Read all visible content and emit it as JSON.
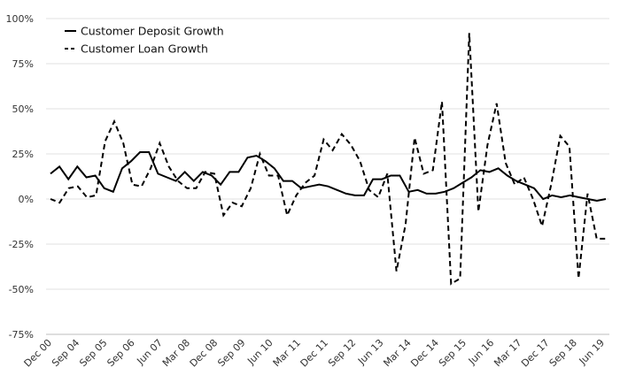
{
  "chart_data": {
    "type": "line",
    "title": "",
    "xlabel": "",
    "ylabel": "",
    "ylim": [
      -75,
      100
    ],
    "yticks": [
      100,
      75,
      50,
      25,
      0,
      -25,
      -50,
      -75
    ],
    "ytick_labels": [
      "100%",
      "75%",
      "50%",
      "25%",
      "0%",
      "-25%",
      "-50%",
      "-75%"
    ],
    "xtick_labels": [
      "Dec 00",
      "Sep 04",
      "Sep 05",
      "Sep 06",
      "Jun 07",
      "Mar 08",
      "Dec 08",
      "Sep 09",
      "Jun 10",
      "Mar 11",
      "Dec 11",
      "Sep 12",
      "Jun 13",
      "Mar 14",
      "Dec 14",
      "Sep 15",
      "Jun 16",
      "Mar 17",
      "Dec 17",
      "Sep 18",
      "Jun 19"
    ],
    "grid": true,
    "legend": "top-left",
    "series": [
      {
        "name": "Customer Deposit Growth",
        "style": "solid",
        "color": "#000000",
        "values": [
          14,
          18,
          11,
          18,
          12,
          13,
          6,
          4,
          17,
          21,
          26,
          26,
          14,
          12,
          10,
          15,
          10,
          15,
          13,
          8,
          15,
          15,
          23,
          24,
          21,
          17,
          10,
          10,
          6,
          7,
          8,
          7,
          5,
          3,
          2,
          2,
          11,
          11,
          13,
          13,
          4,
          5,
          3,
          3,
          4,
          6,
          9,
          12,
          16,
          15,
          17,
          13,
          10,
          8,
          6,
          0,
          2,
          1,
          2,
          1,
          0,
          -1,
          0
        ]
      },
      {
        "name": "Customer Loan Growth",
        "style": "dashed",
        "color": "#000000",
        "values": [
          0,
          -2,
          6,
          7,
          1,
          2,
          32,
          43,
          31,
          8,
          7,
          17,
          31,
          18,
          10,
          6,
          6,
          15,
          14,
          -9,
          -2,
          -4,
          6,
          25,
          13,
          13,
          -9,
          2,
          9,
          13,
          33,
          27,
          36,
          30,
          21,
          5,
          1,
          14,
          -40,
          -14,
          34,
          14,
          16,
          54,
          -47,
          -44,
          92,
          -7,
          30,
          53,
          20,
          8,
          12,
          0,
          -15,
          8,
          35,
          29,
          -44,
          3,
          -22,
          -22
        ]
      }
    ]
  }
}
